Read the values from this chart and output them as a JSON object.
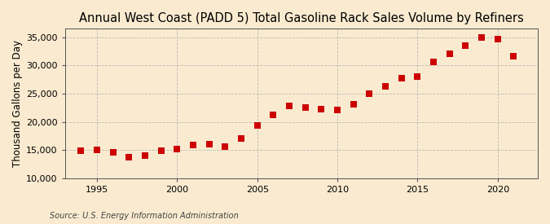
{
  "title": "Annual West Coast (PADD 5) Total Gasoline Rack Sales Volume by Refiners",
  "ylabel": "Thousand Gallons per Day",
  "source": "Source: U.S. Energy Information Administration",
  "background_color": "#faebd0",
  "plot_bg_color": "#faebd0",
  "marker_color": "#cc0000",
  "grid_color": "#b0b0b0",
  "spine_color": "#555555",
  "years": [
    1994,
    1995,
    1996,
    1997,
    1998,
    1999,
    2000,
    2001,
    2002,
    2003,
    2004,
    2005,
    2006,
    2007,
    2008,
    2009,
    2010,
    2011,
    2012,
    2013,
    2014,
    2015,
    2016,
    2017,
    2018,
    2019,
    2020,
    2021
  ],
  "values": [
    14950,
    15100,
    14650,
    13800,
    14000,
    14850,
    15200,
    15900,
    16000,
    15600,
    17100,
    19400,
    21200,
    22800,
    22500,
    22200,
    22100,
    23100,
    25000,
    26300,
    27700,
    28100,
    30700,
    32100,
    33500,
    34950,
    34650,
    31700
  ],
  "xlim": [
    1993.0,
    2022.5
  ],
  "ylim": [
    10000,
    36500
  ],
  "yticks": [
    10000,
    15000,
    20000,
    25000,
    30000,
    35000
  ],
  "ytick_labels": [
    "10,000",
    "15,000",
    "20,000",
    "25,000",
    "30,000",
    "35,000"
  ],
  "xticks": [
    1995,
    2000,
    2005,
    2010,
    2015,
    2020
  ],
  "title_fontsize": 10.5,
  "label_fontsize": 8.5,
  "tick_fontsize": 8,
  "source_fontsize": 7,
  "marker_size": 28
}
